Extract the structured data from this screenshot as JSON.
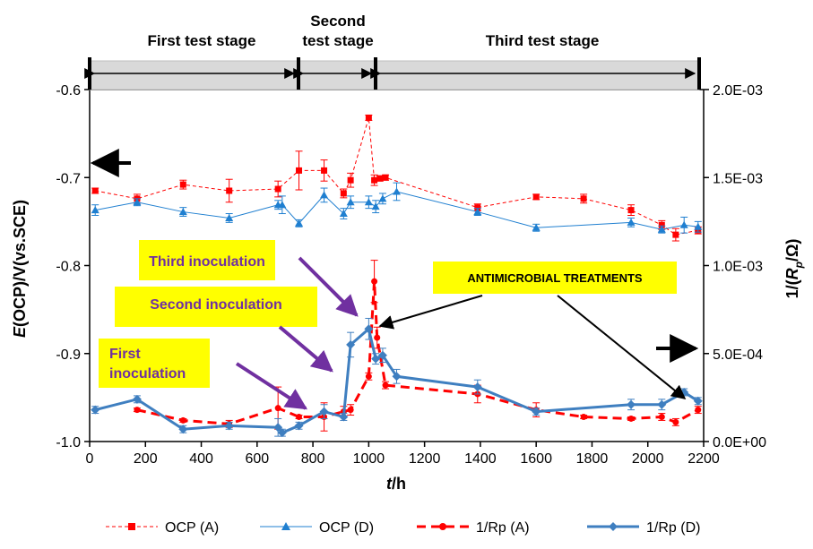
{
  "chart_data": {
    "type": "line",
    "xlabel": "t/h",
    "ylabel_left": "E(OCP)/V(vs.SCE)",
    "ylabel_right": "1/(Rp/Ω)",
    "xlim": [
      0,
      2200
    ],
    "ylim_left": [
      -1.0,
      -0.6
    ],
    "ylim_right": [
      0,
      0.002
    ],
    "x_ticks": [
      "0",
      "200",
      "400",
      "600",
      "800",
      "1000",
      "1200",
      "1400",
      "1600",
      "1800",
      "2000",
      "2200"
    ],
    "y_left_ticks": [
      "-1.0",
      "-0.9",
      "-0.8",
      "-0.7",
      "-0.6"
    ],
    "y_right_ticks": [
      "0.0E+00",
      "5.0E-04",
      "1.0E-03",
      "1.5E-03",
      "2.0E-03"
    ],
    "grid": false,
    "legend_position": "bottom",
    "stages": [
      {
        "label": "First test stage",
        "from": 0,
        "to": 740
      },
      {
        "label_line1": "Second",
        "label_line2": "test stage",
        "from": 740,
        "to": 1025
      },
      {
        "label": "Third test stage",
        "from": 1025,
        "to": 2180
      }
    ],
    "annotations": {
      "first_inoculation_line1": "First",
      "first_inoculation_line2": "inoculation",
      "second_inoculation": "Second inoculation",
      "third_inoculation": "Third inoculation",
      "antimicrobial": "ANTIMICROBIAL TREATMENTS"
    },
    "series": [
      {
        "name": "OCP (A)",
        "axis": "left",
        "color": "#ff0000",
        "marker": "square",
        "style": "dash-thin",
        "x": [
          20,
          170,
          335,
          500,
          675,
          750,
          840,
          910,
          935,
          1000,
          1020,
          1040,
          1060,
          1390,
          1600,
          1770,
          1940,
          2050,
          2100,
          2180
        ],
        "y": [
          -0.715,
          -0.724,
          -0.708,
          -0.715,
          -0.713,
          -0.692,
          -0.692,
          -0.718,
          -0.703,
          -0.632,
          -0.703,
          -0.701,
          -0.7,
          -0.734,
          -0.722,
          -0.724,
          -0.737,
          -0.754,
          -0.765,
          -0.76
        ],
        "err": [
          0.003,
          0.005,
          0.005,
          0.013,
          0.009,
          0.022,
          0.012,
          0.005,
          0.008,
          0.003,
          0.006,
          0.003,
          0.003,
          0.004,
          0.003,
          0.005,
          0.006,
          0.005,
          0.007,
          0.004
        ]
      },
      {
        "name": "OCP (D)",
        "axis": "left",
        "color": "#1f7fd0",
        "marker": "triangle",
        "style": "solid-thin",
        "x": [
          20,
          170,
          335,
          500,
          675,
          690,
          750,
          840,
          910,
          935,
          1000,
          1025,
          1050,
          1100,
          1390,
          1600,
          1940,
          2050,
          2130,
          2180
        ],
        "y": [
          -0.737,
          -0.728,
          -0.739,
          -0.746,
          -0.731,
          -0.731,
          -0.752,
          -0.72,
          -0.741,
          -0.728,
          -0.728,
          -0.733,
          -0.724,
          -0.716,
          -0.739,
          -0.757,
          -0.751,
          -0.759,
          -0.754,
          -0.756
        ],
        "err": [
          0.006,
          0.004,
          0.005,
          0.005,
          0.005,
          0.01,
          0.004,
          0.008,
          0.006,
          0.007,
          0.007,
          0.007,
          0.006,
          0.01,
          0.004,
          0.004,
          0.005,
          0.004,
          0.009,
          0.006
        ]
      },
      {
        "name": "1/Rp (A)",
        "axis": "right",
        "color": "#ff0000",
        "marker": "circle",
        "style": "dash-thick",
        "x": [
          170,
          335,
          500,
          675,
          750,
          840,
          910,
          935,
          1000,
          1020,
          1030,
          1060,
          1390,
          1600,
          1770,
          1940,
          2050,
          2100,
          2180
        ],
        "y": [
          0.00018,
          0.00012,
          0.0001,
          0.00019,
          0.00014,
          0.00014,
          0.00017,
          0.00018,
          0.00037,
          0.00091,
          0.00059,
          0.00032,
          0.00027,
          0.00018,
          0.00014,
          0.00013,
          0.00014,
          0.00011,
          0.00018
        ],
        "err": [
          1e-05,
          1e-05,
          2e-05,
          0.00012,
          1e-05,
          8e-05,
          3e-05,
          3e-05,
          2e-05,
          0.00012,
          6e-05,
          2e-05,
          5e-05,
          4e-05,
          1e-05,
          1e-05,
          2e-05,
          2e-05,
          2e-05
        ]
      },
      {
        "name": "1/Rp (D)",
        "axis": "right",
        "color": "#3f7fc0",
        "marker": "diamond",
        "style": "solid-thick",
        "x": [
          20,
          170,
          335,
          500,
          675,
          690,
          750,
          840,
          910,
          935,
          1000,
          1025,
          1050,
          1100,
          1390,
          1600,
          1940,
          2050,
          2130,
          2180
        ],
        "y": [
          0.00018,
          0.00024,
          7e-05,
          9e-05,
          8e-05,
          5e-05,
          9e-05,
          0.00017,
          0.00014,
          0.00055,
          0.00064,
          0.00047,
          0.00049,
          0.00037,
          0.00031,
          0.00017,
          0.00021,
          0.00021,
          0.00028,
          0.00023
        ],
        "err": [
          2e-05,
          2e-05,
          2e-05,
          2e-05,
          5e-05,
          2e-05,
          2e-05,
          4e-05,
          2e-05,
          7e-05,
          6e-05,
          3e-05,
          4e-05,
          4e-05,
          4e-05,
          2e-05,
          3e-05,
          3e-05,
          2e-05,
          2e-05
        ]
      }
    ]
  }
}
